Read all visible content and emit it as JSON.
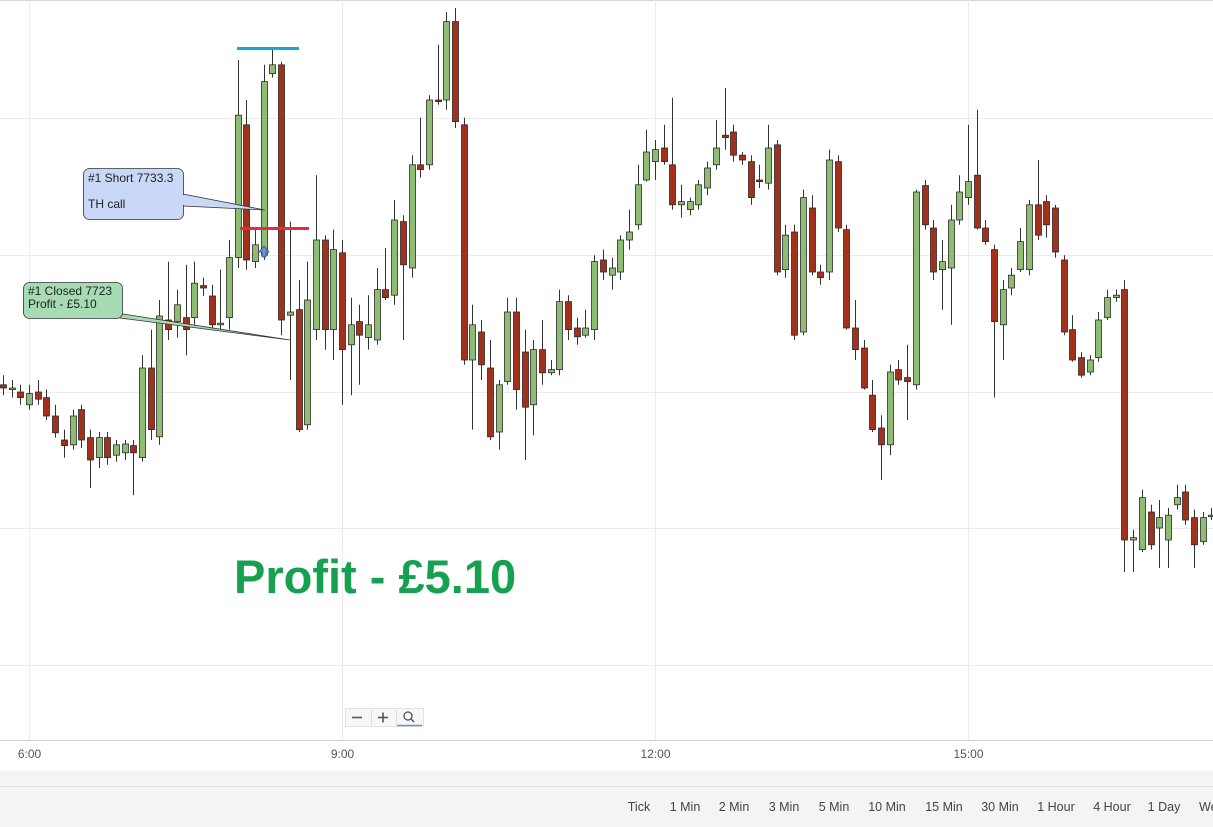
{
  "chart_data": {
    "type": "candlestick",
    "x": [
      345,
      350,
      355,
      360,
      365,
      370,
      375,
      380,
      385,
      390,
      395,
      400,
      405,
      410,
      415,
      420,
      425,
      430,
      435,
      440,
      445,
      450,
      455,
      460,
      465,
      470,
      475,
      480,
      485,
      490,
      495,
      500,
      505,
      510,
      515,
      520,
      525,
      530,
      535,
      540,
      545,
      550,
      555,
      560,
      565,
      570,
      575,
      580,
      585,
      590,
      595,
      600,
      605,
      610,
      615,
      620,
      625,
      630,
      635,
      640,
      645,
      650,
      655,
      660,
      665,
      670,
      675,
      680,
      685,
      690,
      695,
      700,
      705,
      710,
      715,
      720,
      725,
      730,
      735,
      740,
      745,
      750,
      755,
      760,
      765,
      770,
      775,
      780,
      785,
      790,
      795,
      800,
      805,
      810,
      815,
      820,
      825,
      830,
      835,
      840,
      845,
      850,
      855,
      860,
      865,
      870,
      875,
      880,
      885,
      890,
      895,
      900,
      905,
      910,
      915,
      920,
      925,
      930,
      935,
      940,
      945,
      950,
      955,
      960,
      965,
      970,
      975,
      980,
      985,
      990,
      995,
      1000,
      1005,
      1010,
      1015,
      1020,
      1025,
      1030,
      1035,
      1040
    ],
    "open": [
      7713.7,
      7713.1,
      7712.8,
      7711.2,
      7712.8,
      7712.1,
      7709.8,
      7706.8,
      7706.2,
      7710.6,
      7707.1,
      7704.6,
      7707.1,
      7704.9,
      7705.2,
      7706.1,
      7704.6,
      7715.8,
      7707.2,
      7721.8,
      7721.6,
      7722.1,
      7722.1,
      7726.1,
      7724.8,
      7721.2,
      7722.1,
      7729.6,
      7746.2,
      7729.1,
      7729.9,
      7752.6,
      7753.7,
      7722.4,
      7723.1,
      7708.7,
      7720.6,
      7731.8,
      7720.6,
      7730.2,
      7718.7,
      7721.6,
      7719.6,
      7719.3,
      7725.6,
      7724.9,
      7734.1,
      7728.3,
      7741.2,
      7741.2,
      7749.3,
      7749.3,
      7759.1,
      7746.2,
      7716.8,
      7720.3,
      7715.8,
      7707.8,
      7714.1,
      7722.8,
      7717.8,
      7711.2,
      7718.1,
      7715.2,
      7715.6,
      7724.1,
      7720.8,
      7719.9,
      7720.6,
      7729.3,
      7727.4,
      7727.8,
      7731.8,
      7733.7,
      7739.3,
      7741.6,
      7743.3,
      7741.2,
      7736.2,
      7735.6,
      7736.2,
      7738.3,
      7741.2,
      7744.9,
      7745.3,
      7742.4,
      7741.6,
      7739.3,
      7738.9,
      7743.7,
      7728.1,
      7732.8,
      7720.3,
      7735.8,
      7727.8,
      7727.8,
      7741.6,
      7733.1,
      7720.8,
      7718.3,
      7712.4,
      7708.3,
      7706.2,
      7715.6,
      7714.6,
      7713.7,
      7738.6,
      7733.3,
      7728.1,
      7728.3,
      7734.3,
      7737.1,
      7739.9,
      7733.3,
      7730.6,
      7721.2,
      7725.8,
      7728.1,
      7728.1,
      7736.2,
      7736.6,
      7735.8,
      7729.3,
      7720.6,
      7717.1,
      7715.3,
      7717.1,
      7722.1,
      7724.6,
      7725.6,
      7694.3,
      7693.1,
      7697.8,
      7695.8,
      7694.3,
      7698.7,
      7700.3,
      7697.1,
      7694.1,
      7697.4
    ],
    "high": [
      7714.9,
      7714.3,
      7713.7,
      7713.7,
      7714.3,
      7713.1,
      7711.2,
      7708.1,
      7710.6,
      7711.2,
      7708.1,
      7707.8,
      7707.8,
      7706.8,
      7706.8,
      7706.8,
      7717.4,
      7720.6,
      7724.3,
      7729.1,
      7725.6,
      7728.7,
      7729.1,
      7727.1,
      7726.2,
      7728.1,
      7731.8,
      7754.3,
      7749.3,
      7733.1,
      7753.7,
      7755.6,
      7754.1,
      7734.1,
      7726.8,
      7729.1,
      7739.9,
      7732.4,
      7733.1,
      7731.8,
      7724.6,
      7723.7,
      7724.9,
      7728.3,
      7730.8,
      7736.8,
      7734.9,
      7742.4,
      7747.1,
      7749.9,
      7756.2,
      7760.3,
      7760.8,
      7747.1,
      7723.7,
      7721.8,
      7719.3,
      7714.3,
      7724.6,
      7724.6,
      7720.6,
      7719.3,
      7721.8,
      7716.8,
      7725.6,
      7724.9,
      7722.1,
      7723.1,
      7729.9,
      7730.6,
      7729.6,
      7732.4,
      7735.6,
      7741.2,
      7745.6,
      7744.3,
      7746.2,
      7749.6,
      7738.7,
      7737.1,
      7739.3,
      7741.6,
      7746.8,
      7750.8,
      7746.2,
      7742.8,
      7742.4,
      7741.2,
      7746.2,
      7744.3,
      7733.7,
      7733.7,
      7738.1,
      7737.4,
      7728.7,
      7743.1,
      7742.4,
      7733.7,
      7724.3,
      7719.3,
      7714.3,
      7709.9,
      7716.2,
      7716.8,
      7718.7,
      7738.1,
      7739.3,
      7734.3,
      7731.8,
      7736.2,
      7739.9,
      7746.2,
      7748.1,
      7734.3,
      7731.2,
      7726.8,
      7728.3,
      7733.3,
      7736.8,
      7741.8,
      7737.4,
      7736.2,
      7729.9,
      7722.4,
      7717.8,
      7717.4,
      7722.8,
      7725.6,
      7725.6,
      7726.8,
      7695.6,
      7700.6,
      7698.7,
      7699.3,
      7698.3,
      7701.2,
      7701.2,
      7698.1,
      7697.8,
      7698.3
    ],
    "low": [
      7712.4,
      7712.1,
      7711.2,
      7710.6,
      7711.2,
      7709.3,
      7707.1,
      7704.6,
      7705.6,
      7705.8,
      7700.8,
      7703.3,
      7703.7,
      7704.1,
      7704.3,
      7699.9,
      7704.1,
      7706.8,
      7706.2,
      7719.3,
      7719.6,
      7717.4,
      7721.2,
      7724.8,
      7720.6,
      7720.6,
      7720.6,
      7728.3,
      7728.1,
      7728.3,
      7729.3,
      7752.1,
      7719.9,
      7714.3,
      7707.8,
      7708.1,
      7719.3,
      7718.1,
      7716.8,
      7711.2,
      7712.4,
      7713.7,
      7718.1,
      7718.7,
      7724.3,
      7723.7,
      7719.3,
      7727.1,
      7739.6,
      7740.6,
      7748.7,
      7748.1,
      7745.8,
      7716.2,
      7708.1,
      7714.3,
      7706.8,
      7705.6,
      7713.7,
      7710.6,
      7704.3,
      7707.4,
      7713.7,
      7714.9,
      7714.9,
      7719.3,
      7718.7,
      7719.6,
      7719.3,
      7726.8,
      7725.6,
      7726.8,
      7730.6,
      7733.1,
      7739.1,
      7739.3,
      7741.2,
      7735.6,
      7734.6,
      7734.9,
      7735.6,
      7737.4,
      7740.6,
      7743.1,
      7741.6,
      7741.2,
      7736.2,
      7738.3,
      7738.1,
      7727.4,
      7727.1,
      7719.3,
      7719.9,
      7727.4,
      7726.2,
      7726.8,
      7732.8,
      7720.6,
      7716.8,
      7713.1,
      7707.8,
      7701.8,
      7704.9,
      7713.7,
      7709.3,
      7713.1,
      7733.1,
      7726.8,
      7723.1,
      7721.2,
      7733.7,
      7736.2,
      7733.1,
      7731.2,
      7712.1,
      7716.8,
      7724.9,
      7727.8,
      7727.4,
      7731.8,
      7732.1,
      7729.6,
      7719.9,
      7716.6,
      7714.6,
      7714.9,
      7716.6,
      7721.8,
      7724.1,
      7690.3,
      7690.3,
      7692.8,
      7693.1,
      7690.8,
      7690.8,
      7698.1,
      7696.2,
      7690.8,
      7693.7,
      7696.8
    ],
    "close": [
      7713.3,
      7713.3,
      7712.1,
      7712.6,
      7711.9,
      7709.8,
      7707.7,
      7706.1,
      7709.8,
      7706.8,
      7704.3,
      7707.1,
      7704.6,
      7706.2,
      7706.3,
      7705.2,
      7715.8,
      7708.1,
      7722.3,
      7720.6,
      7723.7,
      7720.6,
      7726.4,
      7725.8,
      7721.2,
      7721.4,
      7729.6,
      7747.4,
      7729.3,
      7731.2,
      7751.6,
      7753.7,
      7721.8,
      7722.8,
      7708.1,
      7724.3,
      7731.8,
      7720.6,
      7730.6,
      7718.1,
      7721.2,
      7719.9,
      7721.2,
      7725.6,
      7724.6,
      7734.3,
      7728.7,
      7741.2,
      7740.6,
      7749.3,
      7749.1,
      7759.1,
      7746.6,
      7716.8,
      7721.2,
      7716.2,
      7707.2,
      7713.7,
      7722.8,
      7713.1,
      7710.9,
      7718.1,
      7715.2,
      7715.6,
      7724.1,
      7720.6,
      7719.7,
      7720.8,
      7729.1,
      7727.8,
      7728.3,
      7731.8,
      7732.8,
      7738.7,
      7742.8,
      7743.1,
      7741.6,
      7736.2,
      7736.6,
      7736.6,
      7738.7,
      7740.8,
      7743.3,
      7744.6,
      7742.4,
      7741.8,
      7737.1,
      7739.1,
      7743.3,
      7727.8,
      7732.4,
      7719.9,
      7737.1,
      7727.8,
      7727.1,
      7741.8,
      7733.3,
      7720.8,
      7718.1,
      7713.3,
      7708.1,
      7706.2,
      7715.3,
      7714.3,
      7714.1,
      7737.8,
      7733.7,
      7727.8,
      7729.1,
      7734.3,
      7737.8,
      7739.1,
      7733.3,
      7731.6,
      7721.6,
      7725.6,
      7727.4,
      7731.6,
      7736.2,
      7732.4,
      7733.7,
      7730.3,
      7720.3,
      7716.8,
      7714.9,
      7716.8,
      7721.8,
      7724.6,
      7724.9,
      7694.3,
      7694.6,
      7699.6,
      7693.7,
      7697.1,
      7697.4,
      7699.6,
      7696.8,
      7693.7,
      7697.1,
      7697.4
    ],
    "up_color": "#8fbc73",
    "down_color": "#a3301a",
    "xlim": [
      343.3,
      1040.9
    ],
    "ylim": [
      7669.3,
      7761.8
    ],
    "xticks": [
      {
        "value": 360,
        "label": "6:00"
      },
      {
        "value": 540,
        "label": "9:00"
      },
      {
        "value": 720,
        "label": "12:00"
      },
      {
        "value": 900,
        "label": "15:00"
      }
    ],
    "grid": true,
    "annotations": [
      {
        "lines": [
          "#1 Short 7733.3",
          "TH call"
        ]
      },
      {
        "lines": [
          "#1 Closed 7723",
          "Profit - £5.10"
        ]
      }
    ],
    "headline": "Profit - £5.10"
  },
  "toolbar": {
    "timeframes": [
      "Tick",
      "1 Min",
      "2 Min",
      "3 Min",
      "5 Min",
      "10 Min",
      "15 Min",
      "30 Min",
      "1 Hour",
      "4 Hour",
      "1 Day",
      "We"
    ]
  }
}
